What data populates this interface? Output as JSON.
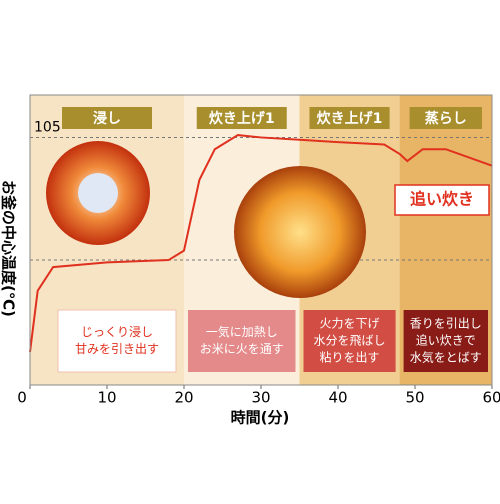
{
  "chart_data": {
    "type": "line",
    "y_label": "お釜の中心温度(℃)",
    "x_label": "時間(分)",
    "x": [
      0,
      1,
      3,
      10,
      18,
      20,
      22,
      24,
      27,
      30,
      35,
      40,
      46,
      48,
      49,
      51,
      54,
      60
    ],
    "values": [
      14,
      40,
      50,
      52,
      53,
      57,
      87,
      100,
      106,
      105,
      104,
      103,
      102,
      98,
      95,
      100,
      100,
      93
    ],
    "color": "#e0301e",
    "xlim": [
      0,
      60
    ],
    "xticks": [
      0,
      10,
      20,
      30,
      40,
      50,
      60
    ],
    "ylim": [
      0,
      123
    ],
    "yticks": [
      105
    ],
    "reference_lines": [
      53
    ],
    "phases": [
      {
        "label": "浸し",
        "start": 0,
        "end": 20,
        "color": "#f7e4c4",
        "box_color": "#ffffff",
        "text_color": "#e0301e",
        "description": [
          "じっくり浸し",
          "甘みを引き出す"
        ]
      },
      {
        "label": "炊き上げ1",
        "start": 20,
        "end": 35,
        "color": "#fbefdc",
        "box_color": "#e58a8a",
        "text_color": "#ffffff",
        "description": [
          "一気に加熱し",
          "お米に火を通す"
        ]
      },
      {
        "label": "炊き上げ1",
        "start": 35,
        "end": 48,
        "color": "#f1cf92",
        "box_color": "#d24d44",
        "text_color": "#ffffff",
        "description": [
          "火力を下げ",
          "水分を飛ばし",
          "粘りを出す"
        ]
      },
      {
        "label": "蒸らし",
        "start": 48,
        "end": 60,
        "color": "#e8b466",
        "box_color": "#8a1c18",
        "text_color": "#ffffff",
        "description": [
          "香りを引出し",
          "追い炊きで",
          "水気をとばす"
        ]
      }
    ],
    "annotation": "追い炊き"
  }
}
